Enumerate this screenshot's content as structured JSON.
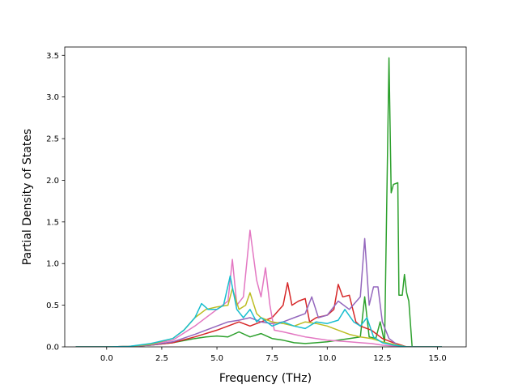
{
  "chart_data": {
    "type": "line",
    "title": "",
    "xlabel": "Frequency (THz)",
    "ylabel": "Partial Density of States",
    "xlim": [
      -1.9,
      16.3
    ],
    "ylim": [
      0,
      3.6
    ],
    "xticks": [
      0,
      2.5,
      5,
      7.5,
      10,
      12.5,
      15
    ],
    "xtick_labels": [
      "0.0",
      "2.5",
      "5.0",
      "7.5",
      "10.0",
      "12.5",
      "15.0"
    ],
    "yticks": [
      0,
      0.5,
      1,
      1.5,
      2,
      2.5,
      3,
      3.5
    ],
    "ytick_labels": [
      "0.0",
      "0.5",
      "1.0",
      "1.5",
      "2.0",
      "2.5",
      "3.0",
      "3.5"
    ],
    "grid": false,
    "legend": "none",
    "series": [
      {
        "color": "#2ca02c",
        "points": [
          [
            -1.4,
            0
          ],
          [
            0,
            0
          ],
          [
            1,
            0.005
          ],
          [
            2,
            0.02
          ],
          [
            3,
            0.05
          ],
          [
            4,
            0.1
          ],
          [
            4.5,
            0.12
          ],
          [
            5,
            0.13
          ],
          [
            5.5,
            0.12
          ],
          [
            6,
            0.18
          ],
          [
            6.5,
            0.12
          ],
          [
            7,
            0.16
          ],
          [
            7.5,
            0.1
          ],
          [
            8,
            0.08
          ],
          [
            8.5,
            0.05
          ],
          [
            9,
            0.04
          ],
          [
            9.5,
            0.05
          ],
          [
            10,
            0.06
          ],
          [
            10.5,
            0.08
          ],
          [
            11,
            0.1
          ],
          [
            11.5,
            0.12
          ],
          [
            11.7,
            0.6
          ],
          [
            11.9,
            0.12
          ],
          [
            12.2,
            0.1
          ],
          [
            12.4,
            0.3
          ],
          [
            12.6,
            0.05
          ],
          [
            12.8,
            3.47
          ],
          [
            12.9,
            1.85
          ],
          [
            13,
            1.95
          ],
          [
            13.2,
            1.97
          ],
          [
            13.25,
            0.62
          ],
          [
            13.4,
            0.62
          ],
          [
            13.5,
            0.87
          ],
          [
            13.6,
            0.65
          ],
          [
            13.7,
            0.55
          ],
          [
            13.85,
            0
          ],
          [
            15.2,
            0
          ]
        ]
      },
      {
        "color": "#d62728",
        "points": [
          [
            -1.4,
            0
          ],
          [
            0,
            0
          ],
          [
            1,
            0.005
          ],
          [
            2,
            0.02
          ],
          [
            3,
            0.05
          ],
          [
            4,
            0.12
          ],
          [
            5,
            0.2
          ],
          [
            5.5,
            0.25
          ],
          [
            6,
            0.3
          ],
          [
            6.5,
            0.25
          ],
          [
            7,
            0.3
          ],
          [
            7.5,
            0.35
          ],
          [
            8,
            0.5
          ],
          [
            8.2,
            0.77
          ],
          [
            8.4,
            0.5
          ],
          [
            8.7,
            0.55
          ],
          [
            9,
            0.58
          ],
          [
            9.2,
            0.3
          ],
          [
            9.5,
            0.35
          ],
          [
            10,
            0.38
          ],
          [
            10.3,
            0.45
          ],
          [
            10.5,
            0.75
          ],
          [
            10.7,
            0.6
          ],
          [
            11,
            0.62
          ],
          [
            11.3,
            0.3
          ],
          [
            11.5,
            0.25
          ],
          [
            12,
            0.2
          ],
          [
            12.5,
            0.1
          ],
          [
            13,
            0.05
          ],
          [
            13.6,
            0
          ],
          [
            15.2,
            0
          ]
        ]
      },
      {
        "color": "#9467bd",
        "points": [
          [
            -1.4,
            0
          ],
          [
            0,
            0
          ],
          [
            1,
            0.005
          ],
          [
            2,
            0.02
          ],
          [
            3,
            0.06
          ],
          [
            4,
            0.15
          ],
          [
            5,
            0.25
          ],
          [
            5.5,
            0.3
          ],
          [
            6,
            0.32
          ],
          [
            6.5,
            0.35
          ],
          [
            7,
            0.3
          ],
          [
            7.5,
            0.28
          ],
          [
            8,
            0.3
          ],
          [
            8.5,
            0.35
          ],
          [
            9,
            0.4
          ],
          [
            9.3,
            0.6
          ],
          [
            9.6,
            0.35
          ],
          [
            10,
            0.38
          ],
          [
            10.5,
            0.55
          ],
          [
            11,
            0.45
          ],
          [
            11.5,
            0.6
          ],
          [
            11.7,
            1.3
          ],
          [
            11.9,
            0.5
          ],
          [
            12.1,
            0.72
          ],
          [
            12.3,
            0.72
          ],
          [
            12.5,
            0.3
          ],
          [
            12.8,
            0.1
          ],
          [
            13.2,
            0.02
          ],
          [
            13.6,
            0
          ],
          [
            15.2,
            0
          ]
        ]
      },
      {
        "color": "#e377c2",
        "points": [
          [
            -1.4,
            0
          ],
          [
            0,
            0
          ],
          [
            1,
            0.005
          ],
          [
            2,
            0.03
          ],
          [
            3,
            0.08
          ],
          [
            4,
            0.25
          ],
          [
            5,
            0.45
          ],
          [
            5.5,
            0.55
          ],
          [
            5.7,
            1.05
          ],
          [
            5.9,
            0.5
          ],
          [
            6.2,
            0.6
          ],
          [
            6.5,
            1.4
          ],
          [
            6.8,
            0.8
          ],
          [
            7,
            0.6
          ],
          [
            7.2,
            0.95
          ],
          [
            7.4,
            0.5
          ],
          [
            7.6,
            0.2
          ],
          [
            8,
            0.18
          ],
          [
            8.5,
            0.15
          ],
          [
            9,
            0.12
          ],
          [
            9.5,
            0.1
          ],
          [
            10,
            0.08
          ],
          [
            10.5,
            0.07
          ],
          [
            11,
            0.06
          ],
          [
            11.5,
            0.05
          ],
          [
            12,
            0.04
          ],
          [
            12.5,
            0.02
          ],
          [
            13,
            0.01
          ],
          [
            13.6,
            0
          ],
          [
            15.2,
            0
          ]
        ]
      },
      {
        "color": "#bcbd22",
        "points": [
          [
            -1.4,
            0
          ],
          [
            0,
            0
          ],
          [
            1,
            0.005
          ],
          [
            2,
            0.03
          ],
          [
            3,
            0.1
          ],
          [
            3.5,
            0.2
          ],
          [
            4,
            0.35
          ],
          [
            4.5,
            0.45
          ],
          [
            5,
            0.48
          ],
          [
            5.5,
            0.5
          ],
          [
            5.7,
            0.7
          ],
          [
            6,
            0.45
          ],
          [
            6.3,
            0.5
          ],
          [
            6.5,
            0.65
          ],
          [
            6.8,
            0.4
          ],
          [
            7,
            0.35
          ],
          [
            7.5,
            0.3
          ],
          [
            8,
            0.28
          ],
          [
            8.5,
            0.25
          ],
          [
            9,
            0.3
          ],
          [
            9.5,
            0.28
          ],
          [
            10,
            0.25
          ],
          [
            10.5,
            0.2
          ],
          [
            11,
            0.15
          ],
          [
            11.5,
            0.12
          ],
          [
            12,
            0.1
          ],
          [
            12.5,
            0.06
          ],
          [
            13,
            0.03
          ],
          [
            13.6,
            0
          ],
          [
            15.2,
            0
          ]
        ]
      },
      {
        "color": "#17becf",
        "points": [
          [
            -1.4,
            0
          ],
          [
            0,
            0
          ],
          [
            1,
            0.005
          ],
          [
            2,
            0.04
          ],
          [
            3,
            0.1
          ],
          [
            3.5,
            0.2
          ],
          [
            4,
            0.35
          ],
          [
            4.3,
            0.52
          ],
          [
            4.6,
            0.45
          ],
          [
            5,
            0.45
          ],
          [
            5.3,
            0.5
          ],
          [
            5.6,
            0.85
          ],
          [
            5.9,
            0.45
          ],
          [
            6.2,
            0.35
          ],
          [
            6.5,
            0.45
          ],
          [
            6.8,
            0.3
          ],
          [
            7,
            0.35
          ],
          [
            7.5,
            0.25
          ],
          [
            8,
            0.3
          ],
          [
            8.5,
            0.25
          ],
          [
            9,
            0.22
          ],
          [
            9.5,
            0.3
          ],
          [
            10,
            0.28
          ],
          [
            10.5,
            0.32
          ],
          [
            10.8,
            0.45
          ],
          [
            11.2,
            0.3
          ],
          [
            11.5,
            0.25
          ],
          [
            11.8,
            0.35
          ],
          [
            12.1,
            0.12
          ],
          [
            12.5,
            0.05
          ],
          [
            13,
            0.02
          ],
          [
            13.6,
            0
          ],
          [
            15.2,
            0
          ]
        ]
      }
    ]
  }
}
